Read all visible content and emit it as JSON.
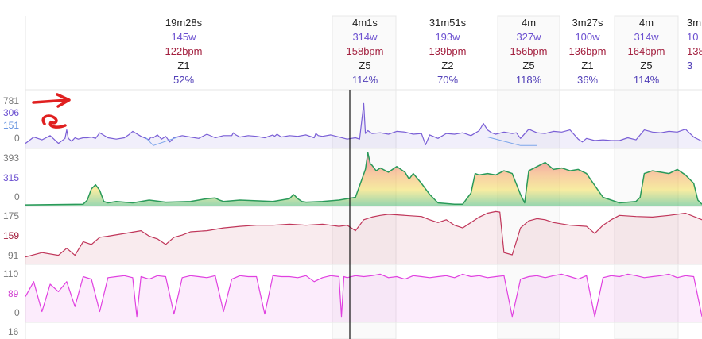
{
  "intervals": [
    {
      "time": "19m28s",
      "power": "145w",
      "hr": "122bpm",
      "zone": "Z1",
      "pct": "52%"
    },
    {
      "time": "4m1s",
      "power": "314w",
      "hr": "158bpm",
      "zone": "Z5",
      "pct": "114%"
    },
    {
      "time": "31m51s",
      "power": "193w",
      "hr": "139bpm",
      "zone": "Z2",
      "pct": "70%"
    },
    {
      "time": "4m",
      "power": "327w",
      "hr": "156bpm",
      "zone": "Z5",
      "pct": "118%"
    },
    {
      "time": "3m27s",
      "power": "100w",
      "hr": "136bpm",
      "zone": "Z1",
      "pct": "36%"
    },
    {
      "time": "4m",
      "power": "314w",
      "hr": "164bpm",
      "zone": "Z5",
      "pct": "114%"
    },
    {
      "time": "3m",
      "power": "10",
      "hr": "138",
      "zone": "",
      "pct": "3"
    }
  ],
  "axes": {
    "power": {
      "max": "781",
      "avg": "306",
      "ftp": "151",
      "min": "0"
    },
    "wbal": {
      "max": "393",
      "mid": "315",
      "min": "0"
    },
    "hr": {
      "max": "175",
      "avg": "159",
      "min": "91"
    },
    "cadence": {
      "max": "110",
      "avg": "89",
      "min": "0"
    },
    "speed": {
      "max": "16"
    }
  },
  "colors": {
    "power": "#7a5fd6",
    "ftp": "#7da6ea",
    "hr": "#c0365a",
    "cadence": "#e040e0",
    "wbal": "#2a9a5a",
    "annotation": "#e02020"
  },
  "chart_data": [
    {
      "type": "line",
      "metric": "power",
      "ylim": [
        0,
        781
      ],
      "x": [
        0,
        10,
        20,
        30,
        40,
        48,
        50,
        52,
        56,
        60,
        64,
        70,
        75,
        80,
        85,
        90,
        100,
        110,
        120,
        125,
        130,
        140,
        150,
        152,
        155,
        160,
        165,
        170,
        175,
        180,
        190,
        200,
        210,
        220,
        230,
        240,
        250,
        252,
        255,
        260,
        270,
        280,
        290,
        300,
        302,
        305,
        310,
        320,
        330,
        340,
        350,
        352,
        355,
        360,
        370,
        380,
        390,
        400,
        405,
        410,
        412,
        415,
        420,
        430,
        440,
        450,
        460,
        470,
        480,
        485,
        490,
        500,
        510,
        520,
        530,
        540,
        550,
        555,
        560,
        565,
        570,
        580,
        590,
        595,
        600,
        610,
        620,
        630,
        640,
        650,
        660,
        670,
        675,
        680,
        690,
        700,
        710,
        720,
        730,
        740,
        750,
        760,
        770,
        780,
        790,
        800,
        810,
        820
      ],
      "y": [
        60,
        150,
        110,
        170,
        60,
        130,
        250,
        130,
        90,
        140,
        120,
        140,
        140,
        150,
        130,
        210,
        140,
        120,
        140,
        180,
        230,
        160,
        110,
        150,
        140,
        180,
        120,
        160,
        80,
        140,
        170,
        150,
        130,
        190,
        140,
        170,
        170,
        210,
        180,
        150,
        170,
        160,
        140,
        180,
        160,
        190,
        150,
        170,
        160,
        180,
        140,
        200,
        170,
        160,
        180,
        150,
        120,
        140,
        120,
        620,
        200,
        240,
        200,
        210,
        190,
        230,
        220,
        190,
        200,
        40,
        180,
        130,
        200,
        190,
        210,
        170,
        240,
        340,
        250,
        210,
        190,
        220,
        200,
        210,
        130,
        260,
        210,
        200,
        230,
        220,
        250,
        120,
        80,
        130,
        100,
        110,
        100,
        100,
        140,
        110,
        250,
        220,
        210,
        230,
        220,
        260,
        150,
        90
      ]
    },
    {
      "type": "line",
      "metric": "ftp",
      "ylim": [
        0,
        781
      ],
      "x": [
        0,
        145,
        155,
        185,
        300,
        330,
        410,
        420,
        560,
        600,
        620
      ],
      "y": [
        151,
        151,
        30,
        151,
        151,
        151,
        151,
        151,
        151,
        30,
        30
      ]
    },
    {
      "type": "area",
      "metric": "wbal",
      "ylim": [
        0,
        393
      ],
      "x": [
        0,
        70,
        75,
        80,
        85,
        90,
        95,
        100,
        110,
        130,
        150,
        170,
        200,
        220,
        230,
        235,
        240,
        250,
        260,
        300,
        320,
        325,
        330,
        335,
        340,
        360,
        380,
        400,
        412,
        415,
        418,
        420,
        425,
        430,
        440,
        450,
        460,
        465,
        470,
        480,
        490,
        500,
        520,
        530,
        540,
        545,
        550,
        560,
        570,
        580,
        590,
        600,
        605,
        610,
        630,
        640,
        650,
        660,
        670,
        680,
        700,
        720,
        740,
        745,
        750,
        760,
        770,
        780,
        790,
        800,
        810,
        815,
        820
      ],
      "y": [
        5,
        10,
        40,
        120,
        150,
        110,
        30,
        20,
        30,
        20,
        40,
        25,
        30,
        50,
        55,
        40,
        30,
        35,
        40,
        30,
        50,
        80,
        50,
        30,
        25,
        30,
        40,
        60,
        260,
        380,
        300,
        290,
        250,
        270,
        240,
        280,
        240,
        190,
        230,
        160,
        80,
        20,
        10,
        10,
        90,
        230,
        220,
        230,
        220,
        250,
        230,
        80,
        20,
        250,
        310,
        260,
        270,
        250,
        260,
        230,
        60,
        20,
        30,
        60,
        230,
        250,
        240,
        230,
        260,
        220,
        160,
        40,
        10
      ]
    },
    {
      "type": "area",
      "metric": "hr",
      "ylim": [
        80,
        180
      ],
      "x": [
        0,
        20,
        40,
        50,
        60,
        70,
        80,
        90,
        100,
        120,
        140,
        150,
        160,
        170,
        180,
        190,
        200,
        220,
        240,
        260,
        280,
        300,
        320,
        340,
        360,
        380,
        390,
        395,
        400,
        410,
        420,
        430,
        440,
        460,
        480,
        490,
        500,
        510,
        520,
        530,
        540,
        550,
        560,
        570,
        575,
        580,
        590,
        600,
        610,
        620,
        630,
        640,
        660,
        680,
        690,
        700,
        710,
        720,
        740,
        760,
        780,
        800,
        820
      ],
      "y": [
        92,
        100,
        95,
        108,
        95,
        120,
        115,
        128,
        130,
        135,
        140,
        130,
        125,
        115,
        128,
        132,
        138,
        140,
        145,
        148,
        150,
        150,
        152,
        150,
        152,
        148,
        150,
        145,
        140,
        160,
        165,
        168,
        170,
        168,
        166,
        160,
        155,
        160,
        150,
        145,
        155,
        165,
        172,
        175,
        174,
        100,
        96,
        145,
        158,
        162,
        160,
        155,
        150,
        148,
        135,
        150,
        160,
        168,
        166,
        165,
        168,
        172,
        160
      ]
    },
    {
      "type": "area",
      "metric": "cadence",
      "ylim": [
        0,
        110
      ],
      "x": [
        0,
        10,
        20,
        30,
        40,
        50,
        60,
        70,
        80,
        90,
        100,
        110,
        120,
        130,
        135,
        140,
        150,
        160,
        170,
        180,
        190,
        200,
        210,
        220,
        230,
        240,
        250,
        260,
        270,
        280,
        290,
        300,
        310,
        320,
        330,
        340,
        350,
        360,
        370,
        380,
        383,
        386,
        390,
        400,
        410,
        420,
        430,
        440,
        450,
        460,
        470,
        480,
        490,
        500,
        510,
        520,
        530,
        540,
        550,
        560,
        570,
        580,
        590,
        600,
        610,
        620,
        630,
        640,
        650,
        660,
        670,
        680,
        690,
        700,
        710,
        720,
        730,
        740,
        750,
        760,
        770,
        780,
        790,
        800,
        810,
        820
      ],
      "y": [
        50,
        80,
        20,
        75,
        60,
        80,
        30,
        90,
        85,
        20,
        88,
        90,
        92,
        88,
        10,
        90,
        85,
        92,
        90,
        15,
        88,
        92,
        90,
        88,
        92,
        20,
        85,
        92,
        90,
        90,
        15,
        92,
        90,
        90,
        88,
        92,
        80,
        88,
        92,
        90,
        10,
        90,
        88,
        92,
        90,
        92,
        95,
        88,
        90,
        85,
        92,
        90,
        88,
        90,
        92,
        88,
        95,
        90,
        92,
        88,
        90,
        92,
        10,
        85,
        90,
        92,
        88,
        92,
        95,
        90,
        85,
        92,
        10,
        88,
        92,
        90,
        95,
        92,
        88,
        90,
        92,
        95,
        88,
        92,
        90,
        10
      ]
    }
  ]
}
